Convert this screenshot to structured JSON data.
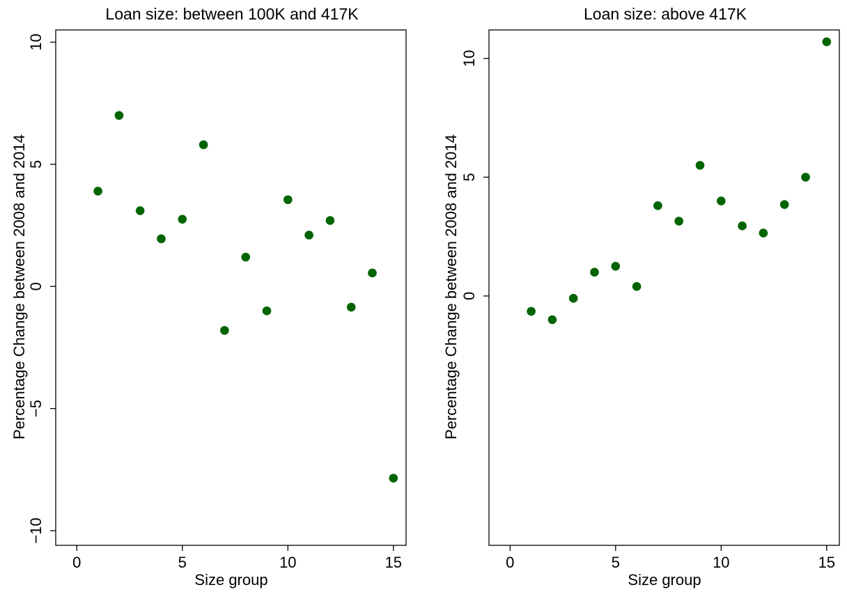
{
  "chart_data": [
    {
      "type": "scatter",
      "title": "Loan size: between 100K and 417K",
      "xlabel": "Size group",
      "ylabel": "Percentage Change between 2008 and 2014",
      "xlim": [
        -1,
        15.6
      ],
      "ylim": [
        -10.6,
        10.5
      ],
      "xticks": [
        0,
        5,
        10,
        15
      ],
      "xtick_labels": [
        "0",
        "5",
        "10",
        "15"
      ],
      "yticks": [
        -10,
        -5,
        0,
        5,
        10
      ],
      "ytick_labels": [
        "−10",
        "−5",
        "0",
        "5",
        "10"
      ],
      "grid": false,
      "marker_color": "#006400",
      "points": [
        {
          "x": 1,
          "y": 3.9
        },
        {
          "x": 2,
          "y": 7.0
        },
        {
          "x": 3,
          "y": 3.1
        },
        {
          "x": 4,
          "y": 1.95
        },
        {
          "x": 5,
          "y": 2.75
        },
        {
          "x": 6,
          "y": 5.8
        },
        {
          "x": 7,
          "y": -1.8
        },
        {
          "x": 8,
          "y": 1.2
        },
        {
          "x": 9,
          "y": -1.0
        },
        {
          "x": 10,
          "y": 3.55
        },
        {
          "x": 11,
          "y": 2.1
        },
        {
          "x": 12,
          "y": 2.7
        },
        {
          "x": 13,
          "y": -0.85
        },
        {
          "x": 14,
          "y": 0.55
        },
        {
          "x": 15,
          "y": -7.85
        }
      ]
    },
    {
      "type": "scatter",
      "title": "Loan size: above 417K",
      "xlabel": "Size group",
      "ylabel": "Percentage Change between 2008 and 2014",
      "xlim": [
        -1,
        15.6
      ],
      "ylim": [
        -10.5,
        11.2
      ],
      "xticks": [
        0,
        5,
        10,
        15
      ],
      "xtick_labels": [
        "0",
        "5",
        "10",
        "15"
      ],
      "yticks": [
        0,
        5,
        10
      ],
      "ytick_labels": [
        "0",
        "5",
        "10"
      ],
      "grid": false,
      "marker_color": "#006400",
      "points": [
        {
          "x": 1,
          "y": -0.65
        },
        {
          "x": 2,
          "y": -1.0
        },
        {
          "x": 3,
          "y": -0.1
        },
        {
          "x": 4,
          "y": 1.0
        },
        {
          "x": 5,
          "y": 1.25
        },
        {
          "x": 6,
          "y": 0.4
        },
        {
          "x": 7,
          "y": 3.8
        },
        {
          "x": 8,
          "y": 3.15
        },
        {
          "x": 9,
          "y": 5.5
        },
        {
          "x": 10,
          "y": 4.0
        },
        {
          "x": 11,
          "y": 2.95
        },
        {
          "x": 12,
          "y": 2.65
        },
        {
          "x": 13,
          "y": 3.85
        },
        {
          "x": 14,
          "y": 5.0
        },
        {
          "x": 15,
          "y": 10.7
        }
      ]
    }
  ]
}
